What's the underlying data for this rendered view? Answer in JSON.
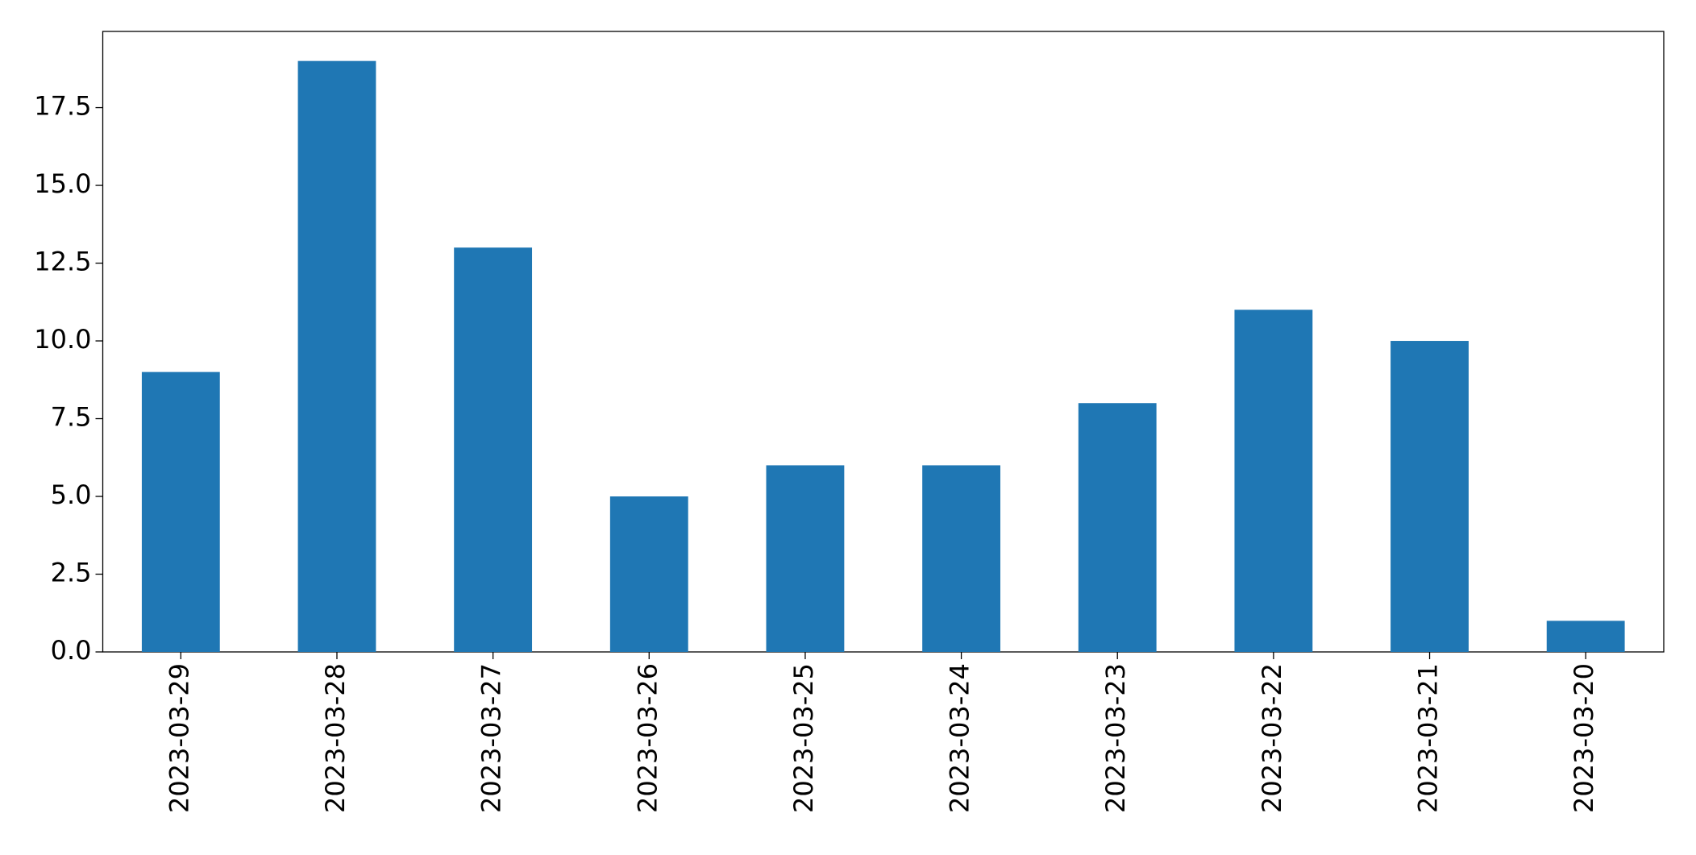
{
  "chart_data": {
    "type": "bar",
    "categories": [
      "2023-03-29",
      "2023-03-28",
      "2023-03-27",
      "2023-03-26",
      "2023-03-25",
      "2023-03-24",
      "2023-03-23",
      "2023-03-22",
      "2023-03-21",
      "2023-03-20"
    ],
    "values": [
      9,
      19,
      13,
      5,
      6,
      6,
      8,
      11,
      10,
      1
    ],
    "color": "#1f77b4",
    "ylim": [
      0,
      19.95
    ],
    "yticks": [
      {
        "value": 0,
        "label": "0.0"
      },
      {
        "value": 2.5,
        "label": "2.5"
      },
      {
        "value": 5,
        "label": "5.0"
      },
      {
        "value": 7.5,
        "label": "7.5"
      },
      {
        "value": 10,
        "label": "10.0"
      },
      {
        "value": 12.5,
        "label": "12.5"
      },
      {
        "value": 15,
        "label": "15.0"
      },
      {
        "value": 17.5,
        "label": "17.5"
      }
    ],
    "grid": false
  }
}
